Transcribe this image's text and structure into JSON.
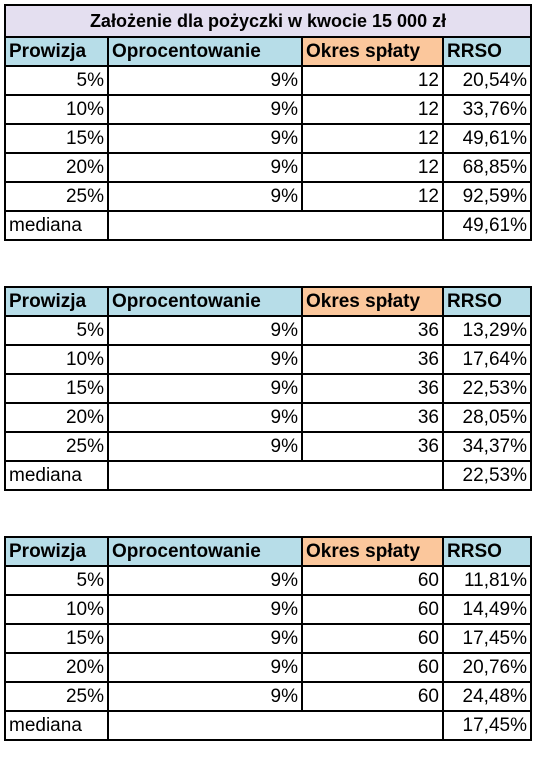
{
  "title": "Założenie dla pożyczki w kwocie 15 000 zł",
  "headers": [
    "Prowizja",
    "Oprocentowanie",
    "Okres spłaty",
    "RRSO"
  ],
  "median_label": "mediana",
  "tables": [
    {
      "rows": [
        {
          "prowizja": "5%",
          "oprocentowanie": "9%",
          "okres": "12",
          "rrso": "20,54%"
        },
        {
          "prowizja": "10%",
          "oprocentowanie": "9%",
          "okres": "12",
          "rrso": "33,76%"
        },
        {
          "prowizja": "15%",
          "oprocentowanie": "9%",
          "okres": "12",
          "rrso": "49,61%"
        },
        {
          "prowizja": "20%",
          "oprocentowanie": "9%",
          "okres": "12",
          "rrso": "68,85%"
        },
        {
          "prowizja": "25%",
          "oprocentowanie": "9%",
          "okres": "12",
          "rrso": "92,59%"
        }
      ],
      "median": "49,61%"
    },
    {
      "rows": [
        {
          "prowizja": "5%",
          "oprocentowanie": "9%",
          "okres": "36",
          "rrso": "13,29%"
        },
        {
          "prowizja": "10%",
          "oprocentowanie": "9%",
          "okres": "36",
          "rrso": "17,64%"
        },
        {
          "prowizja": "15%",
          "oprocentowanie": "9%",
          "okres": "36",
          "rrso": "22,53%"
        },
        {
          "prowizja": "20%",
          "oprocentowanie": "9%",
          "okres": "36",
          "rrso": "28,05%"
        },
        {
          "prowizja": "25%",
          "oprocentowanie": "9%",
          "okres": "36",
          "rrso": "34,37%"
        }
      ],
      "median": "22,53%"
    },
    {
      "rows": [
        {
          "prowizja": "5%",
          "oprocentowanie": "9%",
          "okres": "60",
          "rrso": "11,81%"
        },
        {
          "prowizja": "10%",
          "oprocentowanie": "9%",
          "okres": "60",
          "rrso": "14,49%"
        },
        {
          "prowizja": "15%",
          "oprocentowanie": "9%",
          "okres": "60",
          "rrso": "17,45%"
        },
        {
          "prowizja": "20%",
          "oprocentowanie": "9%",
          "okres": "60",
          "rrso": "20,76%"
        },
        {
          "prowizja": "25%",
          "oprocentowanie": "9%",
          "okres": "60",
          "rrso": "24,48%"
        }
      ],
      "median": "17,45%"
    }
  ]
}
